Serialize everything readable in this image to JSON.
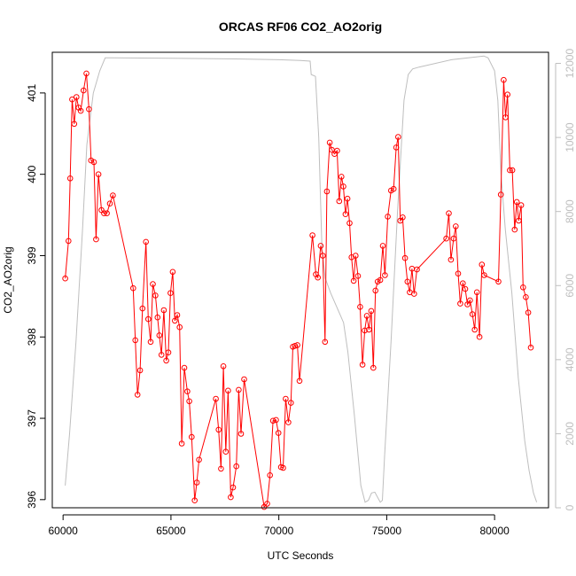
{
  "chart_data": {
    "type": "line",
    "title": "ORCAS RF06 CO2_AO2orig",
    "xlabel": "UTC Seconds",
    "ylabel": "CO2_AO2orig",
    "y2label": "",
    "xlim": [
      59500,
      82500
    ],
    "ylim": [
      395.9,
      401.5
    ],
    "y2lim": [
      0,
      12300
    ],
    "x_ticks": [
      "60000",
      "65000",
      "70000",
      "75000",
      "80000"
    ],
    "y_ticks": [
      "396",
      "397",
      "398",
      "399",
      "400",
      "401"
    ],
    "y2_ticks": [
      "0",
      "2000",
      "4000",
      "6000",
      "8000",
      "10000",
      "12000"
    ],
    "colors": {
      "co2": "#ff0000",
      "altitude": "#bebebe"
    },
    "series": [
      {
        "axis": "left",
        "points": [
          [
            60100,
            398.72
          ],
          [
            60250,
            399.18
          ],
          [
            60330,
            399.95
          ],
          [
            60420,
            400.92
          ],
          [
            60520,
            400.62
          ],
          [
            60620,
            400.95
          ],
          [
            60720,
            400.82
          ],
          [
            60820,
            400.78
          ],
          [
            60950,
            401.03
          ],
          [
            61080,
            401.24
          ],
          [
            61200,
            400.8
          ],
          [
            61300,
            400.17
          ],
          [
            61430,
            400.15
          ],
          [
            61530,
            399.2
          ],
          [
            61640,
            400.0
          ],
          [
            61780,
            399.56
          ],
          [
            61900,
            399.52
          ],
          [
            62030,
            399.52
          ],
          [
            62170,
            399.64
          ],
          [
            62310,
            399.74
          ],
          [
            63250,
            398.6
          ],
          [
            63350,
            397.96
          ],
          [
            63450,
            397.29
          ],
          [
            63570,
            397.59
          ],
          [
            63680,
            398.35
          ],
          [
            63840,
            399.17
          ],
          [
            63950,
            398.22
          ],
          [
            64060,
            397.94
          ],
          [
            64160,
            398.65
          ],
          [
            64280,
            398.51
          ],
          [
            64380,
            398.24
          ],
          [
            64460,
            398.02
          ],
          [
            64560,
            397.78
          ],
          [
            64670,
            398.33
          ],
          [
            64780,
            397.71
          ],
          [
            64880,
            397.81
          ],
          [
            64980,
            398.54
          ],
          [
            65080,
            398.8
          ],
          [
            65180,
            398.2
          ],
          [
            65290,
            398.27
          ],
          [
            65400,
            398.12
          ],
          [
            65500,
            396.69
          ],
          [
            65620,
            397.62
          ],
          [
            65760,
            397.33
          ],
          [
            65850,
            397.21
          ],
          [
            65960,
            396.77
          ],
          [
            66100,
            395.99
          ],
          [
            66200,
            396.21
          ],
          [
            66300,
            396.49
          ],
          [
            67080,
            397.24
          ],
          [
            67210,
            396.86
          ],
          [
            67320,
            396.38
          ],
          [
            67430,
            397.64
          ],
          [
            67540,
            396.59
          ],
          [
            67650,
            397.34
          ],
          [
            67770,
            396.03
          ],
          [
            67880,
            396.15
          ],
          [
            68030,
            396.41
          ],
          [
            68140,
            397.35
          ],
          [
            68250,
            396.81
          ],
          [
            68390,
            397.48
          ],
          [
            69320,
            395.91
          ],
          [
            69460,
            395.95
          ],
          [
            69590,
            396.3
          ],
          [
            69730,
            396.97
          ],
          [
            69870,
            396.98
          ],
          [
            69980,
            396.82
          ],
          [
            70100,
            396.4
          ],
          [
            70200,
            396.39
          ],
          [
            70320,
            397.24
          ],
          [
            70440,
            396.95
          ],
          [
            70560,
            397.19
          ],
          [
            70650,
            397.88
          ],
          [
            70750,
            397.89
          ],
          [
            70860,
            397.9
          ],
          [
            70960,
            397.46
          ],
          [
            71560,
            399.25
          ],
          [
            71720,
            398.77
          ],
          [
            71810,
            398.73
          ],
          [
            71940,
            399.12
          ],
          [
            72040,
            399.0
          ],
          [
            72140,
            397.94
          ],
          [
            72230,
            399.79
          ],
          [
            72360,
            400.39
          ],
          [
            72460,
            400.3
          ],
          [
            72580,
            400.25
          ],
          [
            72700,
            400.29
          ],
          [
            72800,
            399.67
          ],
          [
            72900,
            399.97
          ],
          [
            72990,
            399.85
          ],
          [
            73090,
            399.51
          ],
          [
            73180,
            399.7
          ],
          [
            73280,
            399.4
          ],
          [
            73370,
            398.98
          ],
          [
            73470,
            398.69
          ],
          [
            73560,
            399.0
          ],
          [
            73670,
            398.75
          ],
          [
            73770,
            398.37
          ],
          [
            73880,
            397.66
          ],
          [
            73980,
            398.08
          ],
          [
            74080,
            398.26
          ],
          [
            74180,
            398.09
          ],
          [
            74280,
            398.32
          ],
          [
            74380,
            397.62
          ],
          [
            74480,
            398.57
          ],
          [
            74580,
            398.68
          ],
          [
            74700,
            398.7
          ],
          [
            74820,
            399.12
          ],
          [
            74920,
            398.76
          ],
          [
            75050,
            399.48
          ],
          [
            75200,
            399.8
          ],
          [
            75320,
            399.82
          ],
          [
            75440,
            400.33
          ],
          [
            75530,
            400.46
          ],
          [
            75630,
            399.43
          ],
          [
            75740,
            399.47
          ],
          [
            75850,
            398.97
          ],
          [
            75960,
            398.68
          ],
          [
            76070,
            398.55
          ],
          [
            76170,
            398.84
          ],
          [
            76270,
            398.53
          ],
          [
            76400,
            398.83
          ],
          [
            77760,
            399.21
          ],
          [
            77880,
            399.52
          ],
          [
            77980,
            398.95
          ],
          [
            78100,
            399.21
          ],
          [
            78200,
            399.36
          ],
          [
            78310,
            398.78
          ],
          [
            78410,
            398.41
          ],
          [
            78530,
            398.66
          ],
          [
            78640,
            398.59
          ],
          [
            78740,
            398.4
          ],
          [
            78860,
            398.45
          ],
          [
            78970,
            398.28
          ],
          [
            79080,
            398.09
          ],
          [
            79180,
            398.55
          ],
          [
            79300,
            398.0
          ],
          [
            79410,
            398.89
          ],
          [
            79520,
            398.76
          ],
          [
            80180,
            398.68
          ],
          [
            80290,
            399.75
          ],
          [
            80420,
            401.16
          ],
          [
            80510,
            400.7
          ],
          [
            80600,
            400.98
          ],
          [
            80710,
            400.05
          ],
          [
            80820,
            400.05
          ],
          [
            80930,
            399.32
          ],
          [
            81030,
            399.66
          ],
          [
            81120,
            399.43
          ],
          [
            81230,
            399.62
          ],
          [
            81320,
            398.61
          ],
          [
            81450,
            398.49
          ],
          [
            81560,
            398.3
          ],
          [
            81680,
            397.87
          ]
        ]
      },
      {
        "axis": "right",
        "points": [
          [
            60100,
            600
          ],
          [
            60300,
            2000
          ],
          [
            60600,
            4500
          ],
          [
            60900,
            7500
          ],
          [
            61100,
            9800
          ],
          [
            61400,
            11200
          ],
          [
            61700,
            11800
          ],
          [
            61950,
            12150
          ],
          [
            62300,
            12150
          ],
          [
            65000,
            12140
          ],
          [
            68000,
            12120
          ],
          [
            70000,
            12100
          ],
          [
            71000,
            12080
          ],
          [
            71450,
            12060
          ],
          [
            71500,
            11700
          ],
          [
            71700,
            11650
          ],
          [
            71850,
            10000
          ],
          [
            72000,
            7000
          ],
          [
            72150,
            6200
          ],
          [
            72400,
            5800
          ],
          [
            72700,
            5400
          ],
          [
            73000,
            5000
          ],
          [
            73200,
            4200
          ],
          [
            73500,
            2500
          ],
          [
            73800,
            600
          ],
          [
            74000,
            150
          ],
          [
            74150,
            200
          ],
          [
            74300,
            400
          ],
          [
            74450,
            420
          ],
          [
            74700,
            150
          ],
          [
            74800,
            200
          ],
          [
            74900,
            1400
          ],
          [
            75200,
            4500
          ],
          [
            75500,
            8000
          ],
          [
            75800,
            11000
          ],
          [
            76000,
            11700
          ],
          [
            76200,
            11850
          ],
          [
            76500,
            11900
          ],
          [
            78000,
            12100
          ],
          [
            79500,
            12200
          ],
          [
            79700,
            12150
          ],
          [
            80000,
            11800
          ],
          [
            80150,
            11000
          ],
          [
            80300,
            9000
          ],
          [
            80500,
            7500
          ],
          [
            80800,
            5800
          ],
          [
            81100,
            3500
          ],
          [
            81400,
            1800
          ],
          [
            81600,
            1000
          ],
          [
            81800,
            400
          ],
          [
            81950,
            150
          ]
        ]
      }
    ]
  }
}
